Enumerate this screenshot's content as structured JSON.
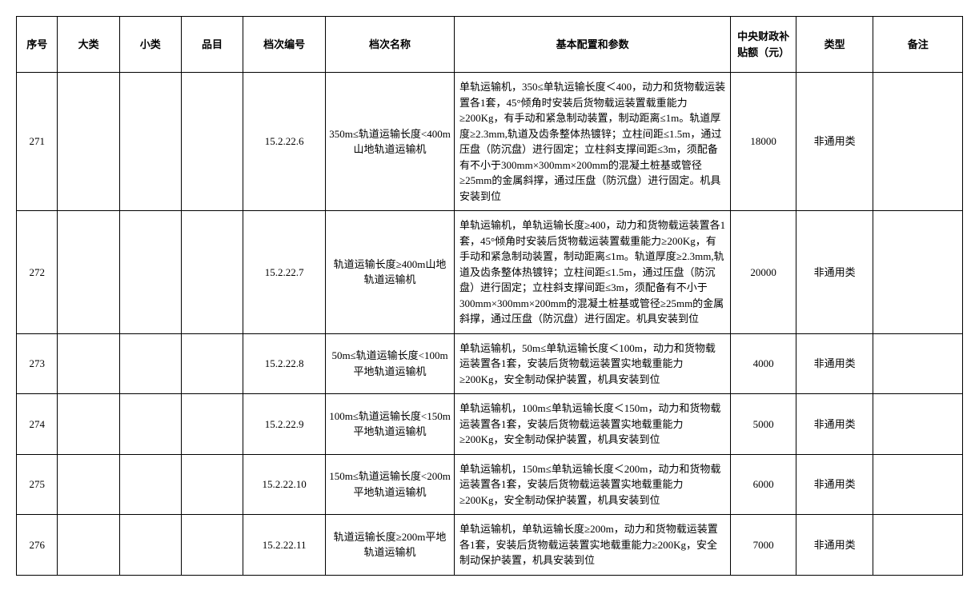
{
  "columns": [
    {
      "key": "seq",
      "label": "序号",
      "class": "col-seq"
    },
    {
      "key": "cat1",
      "label": "大类",
      "class": "col-cat1"
    },
    {
      "key": "cat2",
      "label": "小类",
      "class": "col-cat2"
    },
    {
      "key": "item",
      "label": "品目",
      "class": "col-item"
    },
    {
      "key": "code",
      "label": "档次编号",
      "class": "col-code"
    },
    {
      "key": "name",
      "label": "档次名称",
      "class": "col-name"
    },
    {
      "key": "desc",
      "label": "基本配置和参数",
      "class": "col-desc"
    },
    {
      "key": "amount",
      "label": "中央财政补贴额（元）",
      "class": "col-amount"
    },
    {
      "key": "type",
      "label": "类型",
      "class": "col-type"
    },
    {
      "key": "remark",
      "label": "备注",
      "class": "col-remark"
    }
  ],
  "rows": [
    {
      "seq": "271",
      "cat1": "",
      "cat2": "",
      "item": "",
      "code": "15.2.22.6",
      "name": "350m≤轨道运输长度<400m山地轨道运输机",
      "desc": "单轨运输机，350≤单轨运输长度＜400，动力和货物载运装置各1套，45°倾角时安装后货物载运装置载重能力≥200Kg，有手动和紧急制动装置，制动距离≤1m。轨道厚度≥2.3mm,轨道及齿条整体热镀锌；立柱间距≤1.5m，通过压盘（防沉盘）进行固定；立柱斜支撑间距≤3m，须配备有不小于300mm×300mm×200mm的混凝土桩基或管径≥25mm的金属斜撑，通过压盘（防沉盘）进行固定。机具安装到位",
      "amount": "18000",
      "type": "非通用类",
      "remark": ""
    },
    {
      "seq": "272",
      "cat1": "",
      "cat2": "",
      "item": "",
      "code": "15.2.22.7",
      "name": "轨道运输长度≥400m山地轨道运输机",
      "desc": "单轨运输机，单轨运输长度≥400，动力和货物载运装置各1套，45°倾角时安装后货物载运装置载重能力≥200Kg，有手动和紧急制动装置，制动距离≤1m。轨道厚度≥2.3mm,轨道及齿条整体热镀锌；立柱间距≤1.5m，通过压盘（防沉盘）进行固定；立柱斜支撑间距≤3m，须配备有不小于300mm×300mm×200mm的混凝土桩基或管径≥25mm的金属斜撑，通过压盘（防沉盘）进行固定。机具安装到位",
      "amount": "20000",
      "type": "非通用类",
      "remark": ""
    },
    {
      "seq": "273",
      "cat1": "",
      "cat2": "",
      "item": "",
      "code": "15.2.22.8",
      "name": "50m≤轨道运输长度<100m平地轨道运输机",
      "desc": "单轨运输机，50m≤单轨运输长度＜100m，动力和货物载运装置各1套，安装后货物载运装置实地载重能力≥200Kg，安全制动保护装置，机具安装到位",
      "amount": "4000",
      "type": "非通用类",
      "remark": ""
    },
    {
      "seq": "274",
      "cat1": "",
      "cat2": "",
      "item": "",
      "code": "15.2.22.9",
      "name": "100m≤轨道运输长度<150m平地轨道运输机",
      "desc": "单轨运输机，100m≤单轨运输长度＜150m，动力和货物载运装置各1套，安装后货物载运装置实地载重能力≥200Kg，安全制动保护装置，机具安装到位",
      "amount": "5000",
      "type": "非通用类",
      "remark": ""
    },
    {
      "seq": "275",
      "cat1": "",
      "cat2": "",
      "item": "",
      "code": "15.2.22.10",
      "name": "150m≤轨道运输长度<200m平地轨道运输机",
      "desc": "单轨运输机，150m≤单轨运输长度＜200m，动力和货物载运装置各1套，安装后货物载运装置实地载重能力≥200Kg，安全制动保护装置，机具安装到位",
      "amount": "6000",
      "type": "非通用类",
      "remark": ""
    },
    {
      "seq": "276",
      "cat1": "",
      "cat2": "",
      "item": "",
      "code": "15.2.22.11",
      "name": "轨道运输长度≥200m平地轨道运输机",
      "desc": "单轨运输机，单轨运输长度≥200m，动力和货物载运装置各1套，安装后货物载运装置实地载重能力≥200Kg，安全制动保护装置，机具安装到位",
      "amount": "7000",
      "type": "非通用类",
      "remark": ""
    }
  ],
  "style": {
    "border_color": "#000000",
    "background_color": "#ffffff",
    "font_family": "SimSun",
    "header_fontsize": 13,
    "cell_fontsize": 13,
    "line_height": 1.5
  }
}
